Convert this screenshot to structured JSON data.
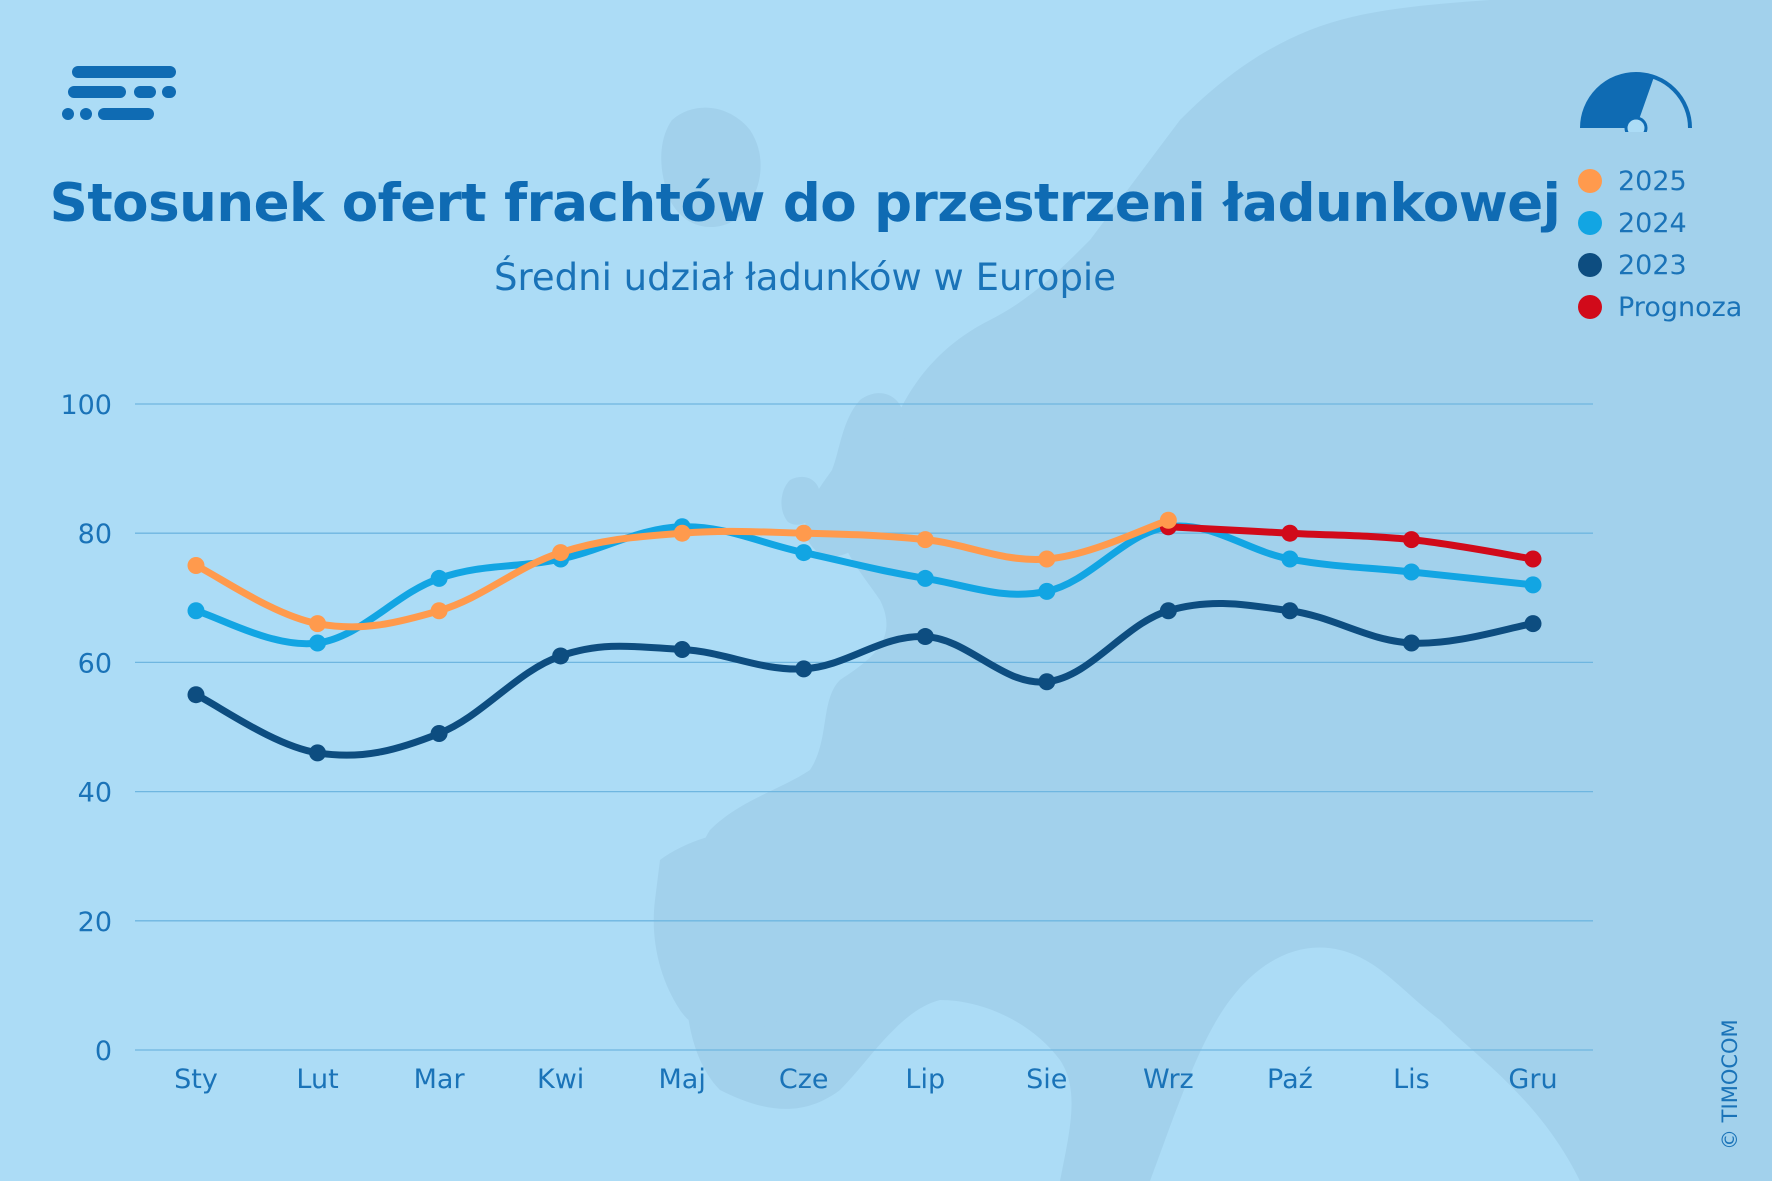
{
  "header": {
    "title": "Stosunek ofert frachtów do przestrzeni ładunkowej",
    "subtitle": "Średni udział ładunków w Europie"
  },
  "icons": {
    "logo": "timocom-logo-icon",
    "gauge": "gauge-icon"
  },
  "colors": {
    "background": "#acdcf6",
    "map": "#a2d1ec",
    "grid": "#6fb6e0",
    "text": "#1a73b8",
    "title": "#0f6bb3",
    "s2025": "#ff9a4d",
    "s2024": "#12a5e3",
    "s2023": "#0d4d80",
    "forecast": "#d10a1a"
  },
  "legend": [
    {
      "label": "2025",
      "color": "#ff9a4d"
    },
    {
      "label": "2024",
      "color": "#12a5e3"
    },
    {
      "label": "2023",
      "color": "#0d4d80"
    },
    {
      "label": "Prognoza",
      "color": "#d10a1a"
    }
  ],
  "copyright": "© TIMOCOM",
  "chart_data": {
    "type": "line",
    "categories": [
      "Sty",
      "Lut",
      "Mar",
      "Kwi",
      "Maj",
      "Cze",
      "Lip",
      "Sie",
      "Wrz",
      "Paź",
      "Lis",
      "Gru"
    ],
    "ylim": [
      0,
      100
    ],
    "yticks": [
      0,
      20,
      40,
      60,
      80,
      100
    ],
    "grid": true,
    "legend_position": "top-right",
    "series": [
      {
        "name": "2023",
        "color": "#0d4d80",
        "values": [
          55,
          46,
          49,
          61,
          62,
          59,
          64,
          57,
          68,
          68,
          63,
          66
        ]
      },
      {
        "name": "2024",
        "color": "#12a5e3",
        "values": [
          68,
          63,
          73,
          76,
          81,
          77,
          73,
          71,
          81,
          76,
          74,
          72
        ]
      },
      {
        "name": "2025",
        "color": "#ff9a4d",
        "values": [
          75,
          66,
          68,
          77,
          80,
          80,
          79,
          76,
          82,
          null,
          null,
          null
        ]
      },
      {
        "name": "Prognoza",
        "color": "#d10a1a",
        "values": [
          null,
          null,
          null,
          null,
          null,
          null,
          null,
          null,
          81,
          80,
          79,
          76
        ]
      }
    ]
  }
}
